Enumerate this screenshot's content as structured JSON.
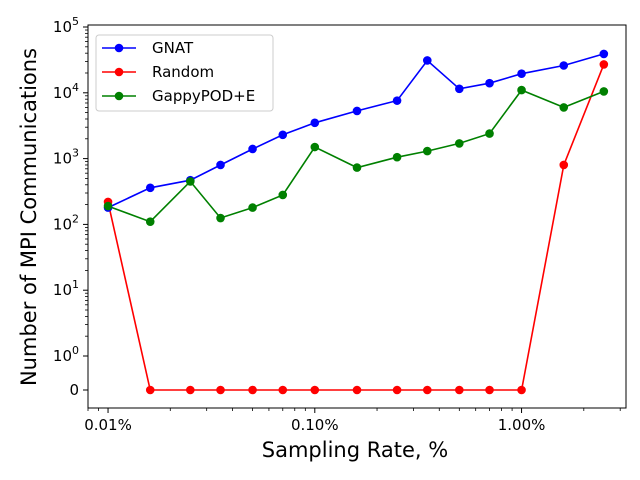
{
  "chart_data": {
    "type": "line",
    "xscale": "log",
    "yscale": "symlog",
    "xlabel": "Sampling Rate, %",
    "ylabel": "Number of MPI Communications",
    "xticks": [
      {
        "value": 0.01,
        "label": "0.01%"
      },
      {
        "value": 0.1,
        "label": "0.10%"
      },
      {
        "value": 1.0,
        "label": "1.00%"
      }
    ],
    "yticks": [
      {
        "value": 0,
        "label": "0",
        "exp": ""
      },
      {
        "value": 1,
        "label": "10",
        "exp": "0"
      },
      {
        "value": 10,
        "label": "10",
        "exp": "1"
      },
      {
        "value": 100,
        "label": "10",
        "exp": "2"
      },
      {
        "value": 1000,
        "label": "10",
        "exp": "3"
      },
      {
        "value": 10000,
        "label": "10",
        "exp": "4"
      },
      {
        "value": 100000,
        "label": "10",
        "exp": "5"
      }
    ],
    "x": [
      0.01,
      0.016,
      0.025,
      0.035,
      0.05,
      0.07,
      0.1,
      0.16,
      0.25,
      0.35,
      0.5,
      0.7,
      1.0,
      1.6,
      2.5
    ],
    "series": [
      {
        "name": "GNAT",
        "color": "#0000ff",
        "values": [
          180,
          360,
          470,
          800,
          1400,
          2300,
          3500,
          5300,
          7600,
          31000,
          11500,
          14000,
          19500,
          26000,
          39000
        ]
      },
      {
        "name": "Random",
        "color": "#ff0000",
        "values": [
          220,
          0,
          0,
          0,
          0,
          0,
          0,
          0,
          0,
          0,
          0,
          0,
          0,
          800,
          27000
        ]
      },
      {
        "name": "GappyPOD+E",
        "color": "#008000",
        "values": [
          190,
          110,
          450,
          125,
          180,
          280,
          1500,
          730,
          1050,
          1300,
          1700,
          2400,
          11000,
          6000,
          10500
        ]
      }
    ],
    "legend_position": "top-left",
    "grid": false
  }
}
